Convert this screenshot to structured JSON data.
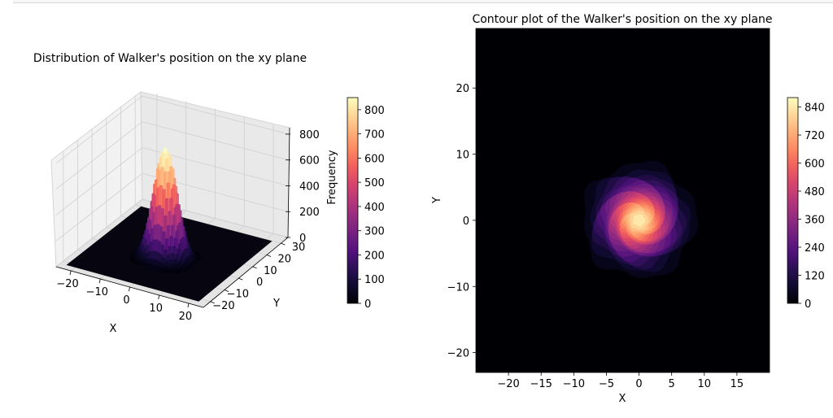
{
  "chart_data": [
    {
      "type": "bar3d",
      "title": "Distribution of Walker's position on the xy plane",
      "xlabel": "X",
      "ylabel": "Y",
      "zlabel": "",
      "x_ticks": [
        -20,
        -10,
        0,
        10,
        20
      ],
      "y_ticks": [
        -20,
        -10,
        0,
        10,
        20,
        30
      ],
      "z_ticks": [
        0,
        200,
        400,
        600,
        800
      ],
      "xlim": [
        -25,
        25
      ],
      "ylim": [
        -25,
        35
      ],
      "zlim": [
        0,
        850
      ],
      "peak": {
        "x": 0,
        "y": 0,
        "frequency": 850
      },
      "spread_sigma": 3.5,
      "colorbar": {
        "label": "Frequency",
        "ticks": [
          0,
          100,
          200,
          300,
          400,
          500,
          600,
          700,
          800
        ],
        "range": [
          0,
          850
        ],
        "colormap": "magma"
      }
    },
    {
      "type": "contour",
      "title": "Contour plot of the Walker's position on the xy plane",
      "xlabel": "X",
      "ylabel": "Y",
      "x_ticks": [
        -20,
        -15,
        -10,
        -5,
        0,
        5,
        10,
        15
      ],
      "y_ticks": [
        -20,
        -10,
        0,
        10,
        20
      ],
      "xlim": [
        -25,
        20
      ],
      "ylim": [
        -23,
        29
      ],
      "peak": {
        "x": 0,
        "y": 0,
        "frequency": 870
      },
      "spread_sigma": 3.5,
      "colorbar": {
        "ticks": [
          0,
          120,
          240,
          360,
          480,
          600,
          720,
          840
        ],
        "range": [
          0,
          880
        ],
        "levels": 22,
        "colormap": "magma"
      }
    }
  ],
  "colormap_stops": [
    "#000004",
    "#0d0a2c",
    "#2b0f54",
    "#51127c",
    "#721f81",
    "#932b80",
    "#b73779",
    "#d8456c",
    "#f1605d",
    "#fc8961",
    "#feb078",
    "#fed799",
    "#fcfdbf"
  ]
}
